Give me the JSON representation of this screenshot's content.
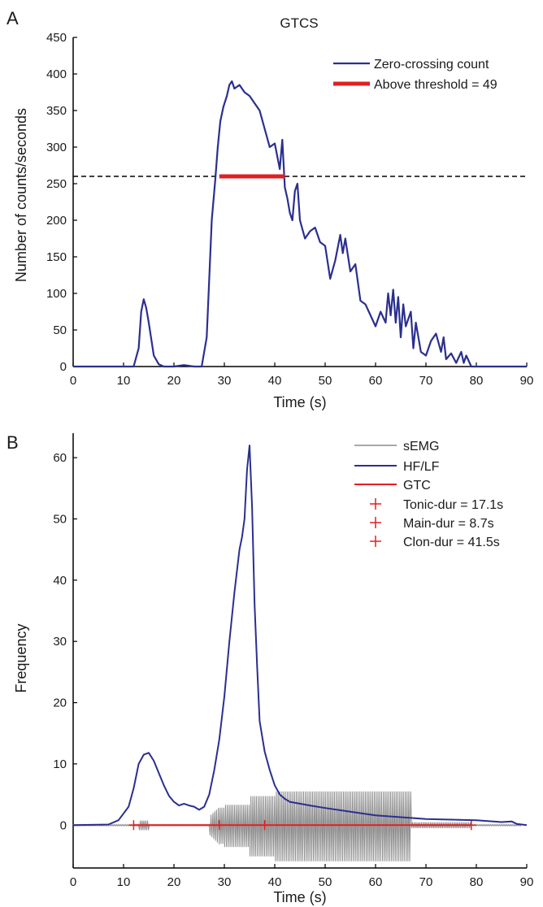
{
  "chart_data": [
    {
      "panel": "A",
      "type": "line",
      "title": "GTCS",
      "xlabel": "Time (s)",
      "ylabel": "Number of counts/seconds",
      "xlim": [
        0,
        90
      ],
      "ylim": [
        0,
        450
      ],
      "xticks": [
        0,
        10,
        20,
        30,
        40,
        50,
        60,
        70,
        80,
        90
      ],
      "yticks": [
        0,
        50,
        100,
        150,
        200,
        250,
        300,
        350,
        400,
        450
      ],
      "legend_position": "top-right",
      "threshold": 260,
      "above_threshold_x": [
        29,
        42
      ],
      "series": [
        {
          "name": "Zero-crossing count",
          "color": "#2b2f8f",
          "x": [
            0,
            12,
            13,
            13.5,
            14,
            14.5,
            15,
            16,
            17,
            18,
            20,
            22,
            24,
            25.5,
            26.5,
            27.5,
            28.2,
            28.7,
            29.2,
            29.8,
            30.5,
            31,
            31.5,
            32,
            33,
            34,
            35,
            36,
            37,
            38,
            39,
            40,
            41,
            41.5,
            42,
            42.5,
            43,
            43.5,
            44,
            44.5,
            45,
            46,
            47,
            48,
            49,
            50,
            51,
            52,
            53,
            53.5,
            54,
            55,
            56,
            57,
            58,
            59,
            60,
            61,
            62,
            62.5,
            63,
            63.5,
            64,
            64.5,
            65,
            65.5,
            66,
            67,
            67.5,
            68,
            68.5,
            69,
            70,
            71,
            72,
            73,
            73.5,
            74,
            75,
            76,
            77,
            77.5,
            78,
            79,
            80,
            81,
            90
          ],
          "y": [
            0,
            0,
            25,
            75,
            92,
            80,
            60,
            15,
            3,
            0,
            0,
            2,
            0,
            0,
            40,
            200,
            255,
            300,
            335,
            355,
            370,
            385,
            390,
            380,
            385,
            375,
            370,
            360,
            350,
            325,
            300,
            305,
            270,
            310,
            245,
            230,
            210,
            200,
            240,
            250,
            200,
            175,
            185,
            190,
            170,
            165,
            120,
            145,
            180,
            155,
            175,
            130,
            140,
            90,
            85,
            70,
            55,
            75,
            60,
            100,
            70,
            105,
            60,
            95,
            40,
            85,
            55,
            75,
            25,
            60,
            40,
            20,
            15,
            35,
            45,
            20,
            40,
            10,
            18,
            5,
            20,
            5,
            15,
            0,
            0,
            0,
            0
          ]
        },
        {
          "name": "Above threshold = 49",
          "color": "#e02020",
          "x": [
            29,
            42
          ],
          "y": [
            260,
            260
          ]
        }
      ]
    },
    {
      "panel": "B",
      "type": "line",
      "title": "",
      "xlabel": "Time (s)",
      "ylabel": "Frequency",
      "xlim": [
        0,
        90
      ],
      "ylim": [
        -7,
        64
      ],
      "xticks": [
        0,
        10,
        20,
        30,
        40,
        50,
        60,
        70,
        80,
        90
      ],
      "yticks": [
        0,
        10,
        20,
        30,
        40,
        50,
        60
      ],
      "legend_position": "top-right",
      "series": [
        {
          "name": "sEMG",
          "color": "#8c8c8c",
          "description_range": "oscillating signal between about -6 and 5.5, dense from ~27 s to ~68 s, small bursts near 13-15 s"
        },
        {
          "name": "HF/LF",
          "color": "#2b2f8f",
          "x": [
            0,
            7,
            9,
            11,
            12,
            13,
            14,
            15,
            16,
            17,
            18,
            19,
            20,
            21,
            22,
            23,
            24,
            25,
            26,
            27,
            28,
            29,
            30,
            31,
            32,
            33,
            33.5,
            34,
            34.5,
            35,
            35.5,
            36,
            36.5,
            37,
            38,
            39,
            40,
            41,
            42,
            43,
            45,
            47,
            50,
            55,
            60,
            65,
            70,
            75,
            80,
            85,
            87,
            88,
            90
          ],
          "y": [
            0,
            0.1,
            0.8,
            3,
            6,
            10,
            11.5,
            11.8,
            10.5,
            8.5,
            6.5,
            4.8,
            3.8,
            3.2,
            3.5,
            3.2,
            3,
            2.5,
            3,
            5,
            9,
            14,
            21,
            30,
            38,
            45,
            47,
            50,
            58,
            62,
            52,
            36,
            26,
            17,
            12,
            9,
            6.5,
            5,
            4.3,
            3.8,
            3.5,
            3.2,
            2.8,
            2.2,
            1.6,
            1.3,
            1,
            0.9,
            0.8,
            0.5,
            0.6,
            0.2,
            0
          ]
        },
        {
          "name": "GTC",
          "color": "#e02020",
          "x": [
            12,
            79
          ],
          "y": [
            0,
            0
          ]
        },
        {
          "name": "Tonic-dur = 17.1s",
          "color": "#e02020",
          "marker": "+",
          "x": [
            12,
            29
          ],
          "y": [
            0,
            0
          ]
        },
        {
          "name": "Main-dur = 8.7s",
          "color": "#e02020",
          "marker": "+",
          "x": [
            29,
            38
          ],
          "y": [
            0,
            0
          ]
        },
        {
          "name": "Clon-dur = 41.5s",
          "color": "#e02020",
          "marker": "+",
          "x": [
            38,
            79
          ],
          "y": [
            0,
            0
          ]
        }
      ]
    }
  ]
}
